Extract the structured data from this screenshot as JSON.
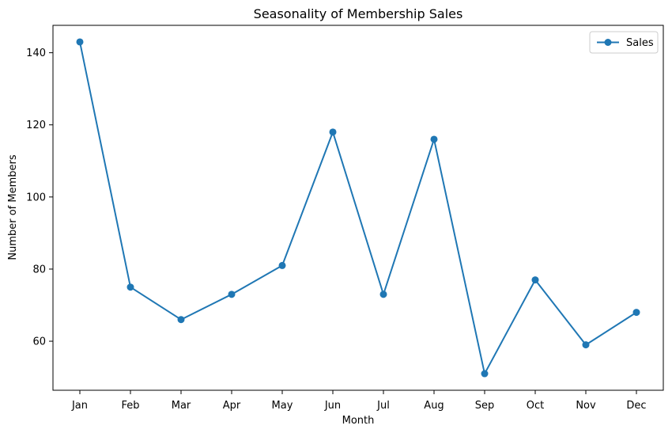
{
  "chart_data": {
    "type": "line",
    "title": "Seasonality of Membership Sales",
    "xlabel": "Month",
    "ylabel": "Number of Members",
    "categories": [
      "Jan",
      "Feb",
      "Mar",
      "Apr",
      "May",
      "Jun",
      "Jul",
      "Aug",
      "Sep",
      "Oct",
      "Nov",
      "Dec"
    ],
    "series": [
      {
        "name": "Sales",
        "values": [
          143,
          75,
          66,
          73,
          81,
          118,
          73,
          116,
          51,
          77,
          59,
          68
        ],
        "color": "#1f77b4",
        "marker": "circle"
      }
    ],
    "ylim": [
      46.4,
      147.6
    ],
    "yticks": [
      60,
      80,
      100,
      120,
      140
    ],
    "grid": false,
    "legend_position": "top-right"
  }
}
